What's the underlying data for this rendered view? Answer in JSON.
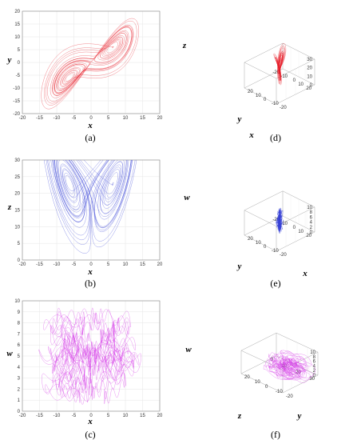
{
  "figure": {
    "colors": {
      "red": "#e8242e",
      "blue": "#3a44d8",
      "magenta": "#d63ee8"
    }
  },
  "chart_data": [
    {
      "id": "a",
      "type": "line",
      "caption": "(a)",
      "xlabel": "x",
      "ylabel": "y",
      "xticks": [
        -20,
        -15,
        -10,
        -5,
        0,
        5,
        10,
        15,
        20
      ],
      "yticks": [
        -20,
        -15,
        -10,
        -5,
        0,
        5,
        10,
        15,
        20
      ],
      "xlim": [
        -20,
        20
      ],
      "ylim": [
        -20,
        20
      ],
      "grid": true,
      "color": "red",
      "x": [
        -15,
        -8,
        0,
        8,
        15
      ],
      "y": [
        -18,
        -10,
        0,
        10,
        18
      ]
    },
    {
      "id": "b",
      "type": "line",
      "caption": "(b)",
      "xlabel": "x",
      "ylabel": "z",
      "xticks": [
        -20,
        -15,
        -10,
        -5,
        0,
        5,
        10,
        15,
        20
      ],
      "yticks": [
        0,
        5,
        10,
        15,
        20,
        25,
        30
      ],
      "xlim": [
        -20,
        20
      ],
      "ylim": [
        0,
        30
      ],
      "grid": true,
      "color": "blue",
      "x": [
        -15,
        -8,
        0,
        8,
        15
      ],
      "y": [
        12,
        18,
        14,
        18,
        12
      ]
    },
    {
      "id": "c",
      "type": "line",
      "caption": "(c)",
      "xlabel": "x",
      "ylabel": "w",
      "xticks": [
        -20,
        -15,
        -10,
        -5,
        0,
        5,
        10,
        15,
        20
      ],
      "yticks": [
        0,
        1,
        2,
        3,
        4,
        5,
        6,
        7,
        8,
        9,
        10
      ],
      "xlim": [
        -20,
        20
      ],
      "ylim": [
        0,
        10
      ],
      "grid": true,
      "color": "magenta",
      "x": [
        -15,
        -8,
        0,
        8,
        15
      ],
      "y": [
        1,
        4,
        6,
        4,
        9
      ]
    },
    {
      "id": "d",
      "type": "line",
      "caption": "(d)",
      "xlabel": "x",
      "ylabel": "y",
      "zlabel": "z",
      "xticks": [
        -20,
        -10,
        0,
        10,
        20
      ],
      "yticks": [
        -20,
        -10,
        0,
        10,
        20
      ],
      "zticks": [
        0,
        10,
        20,
        30
      ],
      "color": "red",
      "x": [
        -15,
        -8,
        0,
        8,
        15
      ],
      "y": [
        -18,
        -10,
        0,
        10,
        18
      ],
      "z": [
        5,
        12,
        18,
        25,
        28
      ]
    },
    {
      "id": "e",
      "type": "line",
      "caption": "(e)",
      "xlabel": "x",
      "ylabel": "y",
      "zlabel": "w",
      "xticks": [
        -20,
        -10,
        0,
        10,
        20
      ],
      "yticks": [
        -20,
        -10,
        0,
        10,
        20
      ],
      "zticks": [
        0,
        2,
        4,
        6,
        8,
        10
      ],
      "color": "blue",
      "x": [
        -15,
        -8,
        0,
        8,
        15
      ],
      "y": [
        -18,
        -10,
        0,
        10,
        18
      ],
      "z": [
        1,
        3,
        5,
        7,
        9
      ]
    },
    {
      "id": "f",
      "type": "line",
      "caption": "(f)",
      "xlabel": "y",
      "ylabel": "z",
      "zlabel": "w",
      "xticks": [
        -20,
        -10,
        0,
        10,
        20
      ],
      "yticks": [
        0,
        10,
        20,
        30
      ],
      "zticks": [
        0,
        2,
        4,
        6,
        8,
        10
      ],
      "color": "magenta",
      "x": [
        -18,
        -10,
        0,
        10,
        18
      ],
      "y": [
        8,
        14,
        20,
        24,
        28
      ],
      "z": [
        1,
        3,
        5,
        7,
        9
      ]
    }
  ]
}
